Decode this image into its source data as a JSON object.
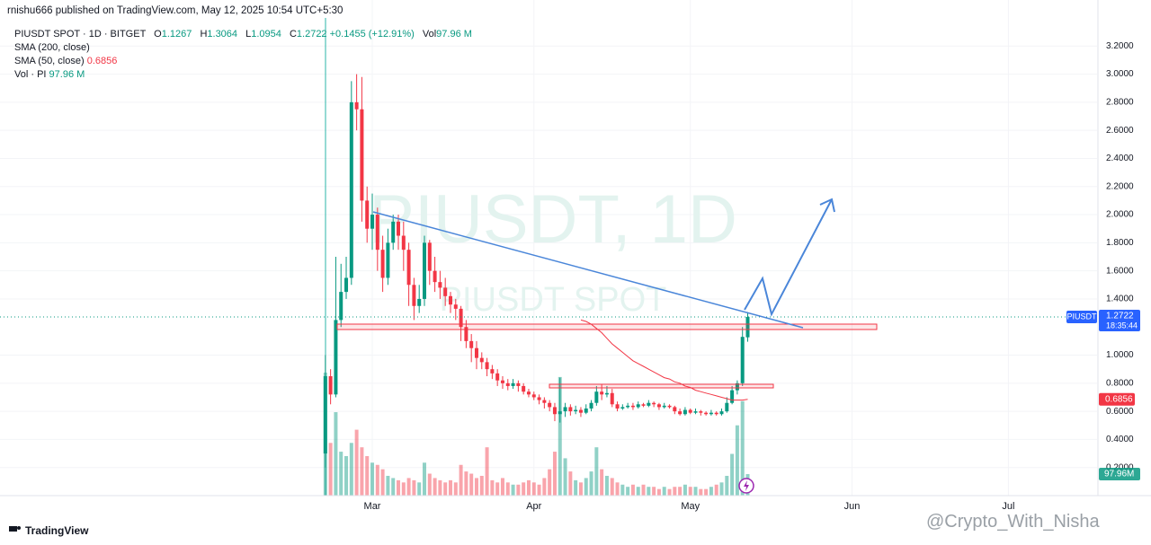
{
  "header": {
    "published": "rnishu666 published on TradingView.com, May 12, 2025 10:54 UTC+5:30"
  },
  "chart_data": {
    "type": "candlestick",
    "symbol": "PIUSDT SPOT · 1D · BITGET",
    "watermark": "PIUSDT, 1D",
    "watermark_sub": "PIUSDT SPOT",
    "legend": {
      "o": "O",
      "h": "H",
      "l": "L",
      "c": "C",
      "change": "+0.1455 (+12.91%)",
      "vol": "Vol",
      "vol_value": "97.96 M",
      "sma200": "SMA (200, close)",
      "vol_study": "Vol · PI"
    },
    "colors": {
      "up": "#089981",
      "down": "#f23645",
      "accent": "#2962ff"
    },
    "x": [
      0,
      1,
      2,
      3,
      4,
      5,
      6,
      7,
      8,
      9,
      10,
      11,
      12,
      13,
      14,
      15,
      16,
      17,
      18,
      19,
      20,
      21,
      22,
      23,
      24,
      25,
      26,
      27,
      28,
      29,
      30,
      31,
      32,
      33,
      34,
      35,
      36,
      37,
      38,
      39,
      40,
      41,
      42,
      43,
      44,
      45,
      46,
      47,
      48,
      49,
      50,
      51,
      52,
      53,
      54,
      55,
      56,
      57,
      58,
      59,
      60,
      61,
      62,
      63,
      64,
      65,
      66,
      67,
      68,
      69,
      70,
      71,
      72,
      73,
      74,
      75,
      76,
      77,
      78,
      79,
      80,
      81
    ],
    "open": [
      0.3,
      0.85,
      0.72,
      1.25,
      1.45,
      1.55,
      2.8,
      2.75,
      2.1,
      1.9,
      2.0,
      1.75,
      1.55,
      1.8,
      1.95,
      1.85,
      1.75,
      1.5,
      1.35,
      1.4,
      1.8,
      1.6,
      1.52,
      1.48,
      1.42,
      1.36,
      1.33,
      1.2,
      1.1,
      1.05,
      0.98,
      0.95,
      0.9,
      0.87,
      0.82,
      0.8,
      0.78,
      0.8,
      0.78,
      0.74,
      0.72,
      0.7,
      0.68,
      0.66,
      0.63,
      0.58,
      0.6,
      0.63,
      0.6,
      0.61,
      0.59,
      0.62,
      0.66,
      0.74,
      0.72,
      0.73,
      0.65,
      0.62,
      0.63,
      0.64,
      0.63,
      0.65,
      0.64,
      0.66,
      0.65,
      0.63,
      0.64,
      0.63,
      0.6,
      0.58,
      0.61,
      0.59,
      0.6,
      0.59,
      0.58,
      0.59,
      0.58,
      0.6,
      0.66,
      0.75,
      0.8,
      1.1267
    ],
    "high": [
      1.0,
      0.9,
      1.7,
      1.65,
      1.7,
      2.95,
      3.0,
      2.98,
      2.2,
      2.15,
      2.05,
      1.85,
      1.9,
      2.0,
      2.0,
      1.95,
      1.8,
      1.55,
      1.5,
      1.85,
      1.82,
      1.7,
      1.6,
      1.55,
      1.45,
      1.4,
      1.35,
      1.25,
      1.15,
      1.1,
      1.02,
      0.98,
      0.93,
      0.9,
      0.85,
      0.83,
      0.83,
      0.82,
      0.8,
      0.76,
      0.74,
      0.72,
      0.7,
      0.68,
      0.66,
      0.84,
      0.66,
      0.65,
      0.64,
      0.63,
      0.65,
      0.68,
      0.78,
      0.79,
      0.78,
      0.76,
      0.67,
      0.65,
      0.66,
      0.66,
      0.67,
      0.66,
      0.68,
      0.67,
      0.66,
      0.66,
      0.65,
      0.64,
      0.62,
      0.63,
      0.62,
      0.62,
      0.61,
      0.6,
      0.61,
      0.6,
      0.62,
      0.7,
      0.78,
      0.82,
      1.2,
      1.3064
    ],
    "low": [
      0.2,
      0.65,
      0.7,
      1.2,
      1.4,
      1.5,
      2.6,
      1.95,
      1.8,
      1.75,
      1.6,
      1.45,
      1.5,
      1.75,
      1.75,
      1.6,
      1.35,
      1.25,
      1.3,
      1.35,
      1.5,
      1.45,
      1.4,
      1.35,
      1.3,
      1.25,
      1.1,
      1.05,
      0.95,
      0.9,
      0.9,
      0.85,
      0.83,
      0.78,
      0.76,
      0.75,
      0.76,
      0.74,
      0.72,
      0.7,
      0.68,
      0.65,
      0.62,
      0.6,
      0.53,
      0.52,
      0.56,
      0.57,
      0.58,
      0.56,
      0.58,
      0.6,
      0.64,
      0.68,
      0.7,
      0.63,
      0.6,
      0.61,
      0.62,
      0.61,
      0.62,
      0.63,
      0.63,
      0.63,
      0.61,
      0.62,
      0.62,
      0.58,
      0.57,
      0.57,
      0.58,
      0.58,
      0.57,
      0.57,
      0.57,
      0.57,
      0.57,
      0.59,
      0.65,
      0.72,
      0.78,
      1.0954
    ],
    "close": [
      0.85,
      0.72,
      1.25,
      1.45,
      1.55,
      2.8,
      2.75,
      2.1,
      1.9,
      2.0,
      1.75,
      1.55,
      1.8,
      1.95,
      1.85,
      1.75,
      1.5,
      1.35,
      1.4,
      1.8,
      1.6,
      1.52,
      1.48,
      1.42,
      1.36,
      1.33,
      1.2,
      1.1,
      1.05,
      0.98,
      0.95,
      0.9,
      0.87,
      0.82,
      0.8,
      0.78,
      0.8,
      0.78,
      0.74,
      0.72,
      0.7,
      0.68,
      0.66,
      0.63,
      0.58,
      0.6,
      0.63,
      0.6,
      0.61,
      0.59,
      0.62,
      0.66,
      0.74,
      0.72,
      0.73,
      0.65,
      0.62,
      0.63,
      0.64,
      0.63,
      0.65,
      0.64,
      0.66,
      0.65,
      0.63,
      0.64,
      0.63,
      0.6,
      0.58,
      0.61,
      0.59,
      0.6,
      0.59,
      0.58,
      0.59,
      0.58,
      0.6,
      0.66,
      0.75,
      0.8,
      1.13,
      1.2722
    ],
    "volume": [
      560,
      240,
      380,
      200,
      180,
      240,
      300,
      220,
      180,
      150,
      140,
      120,
      90,
      80,
      70,
      60,
      80,
      70,
      60,
      150,
      100,
      80,
      70,
      60,
      70,
      60,
      140,
      110,
      100,
      80,
      90,
      220,
      70,
      60,
      80,
      60,
      50,
      50,
      60,
      70,
      60,
      50,
      80,
      120,
      200,
      540,
      170,
      110,
      70,
      60,
      80,
      110,
      220,
      120,
      90,
      80,
      60,
      50,
      40,
      50,
      40,
      50,
      40,
      40,
      30,
      40,
      30,
      40,
      40,
      50,
      40,
      40,
      30,
      30,
      40,
      50,
      60,
      90,
      190,
      320,
      430,
      97.96
    ],
    "sma50": {
      "name": "SMA (50, close)",
      "color": "#f23645",
      "values": [
        null,
        null,
        null,
        null,
        null,
        null,
        null,
        null,
        null,
        null,
        null,
        null,
        null,
        null,
        null,
        null,
        null,
        null,
        null,
        null,
        null,
        null,
        null,
        null,
        null,
        null,
        null,
        null,
        null,
        null,
        null,
        null,
        null,
        null,
        null,
        null,
        null,
        null,
        null,
        null,
        null,
        null,
        null,
        null,
        null,
        null,
        null,
        null,
        null,
        1.25,
        1.24,
        1.22,
        1.19,
        1.16,
        1.12,
        1.08,
        1.05,
        1.02,
        0.99,
        0.96,
        0.94,
        0.92,
        0.9,
        0.88,
        0.86,
        0.84,
        0.83,
        0.81,
        0.8,
        0.78,
        0.77,
        0.75,
        0.74,
        0.73,
        0.72,
        0.71,
        0.7,
        0.69,
        0.68,
        0.68,
        0.68,
        0.6856
      ]
    },
    "xlim": [
      -62.4,
      148
    ],
    "xticks": [
      {
        "value": 9,
        "label": "Mar"
      },
      {
        "value": 40,
        "label": "Apr"
      },
      {
        "value": 70,
        "label": "May"
      },
      {
        "value": 101,
        "label": "Jun"
      },
      {
        "value": 131,
        "label": "Jul"
      }
    ],
    "ylim": [
      0,
      3.4
    ],
    "yticks": [
      {
        "value": 3.2,
        "label": "3.2000"
      },
      {
        "value": 3.0,
        "label": "3.0000"
      },
      {
        "value": 2.8,
        "label": "2.8000"
      },
      {
        "value": 2.6,
        "label": "2.6000"
      },
      {
        "value": 2.4,
        "label": "2.4000"
      },
      {
        "value": 2.2,
        "label": "2.2000"
      },
      {
        "value": 2.0,
        "label": "2.0000"
      },
      {
        "value": 1.8,
        "label": "1.8000"
      },
      {
        "value": 1.6,
        "label": "1.6000"
      },
      {
        "value": 1.4,
        "label": "1.4000"
      },
      {
        "value": 1.0,
        "label": "1.0000"
      },
      {
        "value": 0.8,
        "label": "0.8000"
      },
      {
        "value": 0.6,
        "label": "0.6000"
      },
      {
        "value": 0.4,
        "label": "0.4000"
      },
      {
        "value": 0.2,
        "label": "0.2000"
      }
    ],
    "grid": true,
    "price_tag": {
      "symbol": "PIUSDT",
      "countdown": "18:35:44"
    },
    "volume_tag": "97.96M"
  },
  "footer": {
    "brand": "TradingView",
    "watermark": "@Crypto_With_Nisha"
  }
}
